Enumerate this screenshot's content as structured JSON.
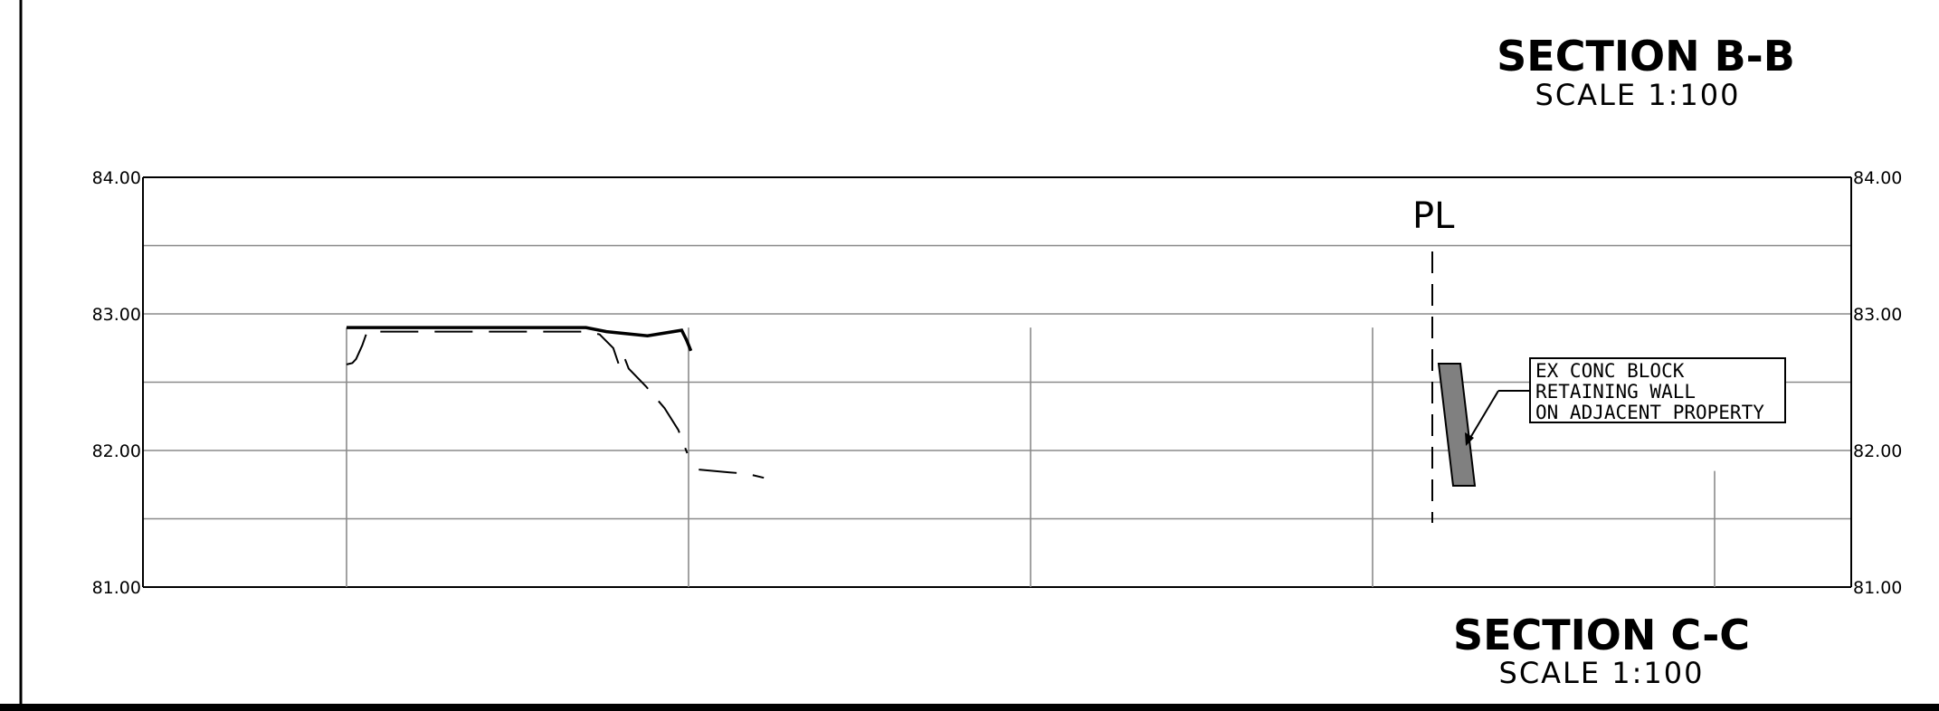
{
  "section_b": {
    "title": "SECTION B-B",
    "scale": "SCALE 1:100"
  },
  "section_c": {
    "title": "SECTION C-C",
    "scale": "SCALE 1:100"
  },
  "property_line": {
    "symbol": "PL"
  },
  "callout": {
    "lines": [
      "EX CONC BLOCK",
      "RETAINING WALL",
      "ON ADJACENT PROPERTY"
    ]
  },
  "chart_data": {
    "type": "line",
    "title": "SECTION C-C",
    "subtitle": "SCALE 1:100",
    "ylim": [
      81.0,
      84.0
    ],
    "y_ticks": [
      "84.00",
      "83.00",
      "82.00",
      "81.00"
    ],
    "grid": true,
    "series": [
      {
        "style": "solid",
        "points": [
          [
            0,
            82.9
          ],
          [
            70,
            82.9
          ],
          [
            76,
            82.87
          ],
          [
            88,
            82.84
          ],
          [
            98,
            82.88
          ],
          [
            99.4,
            82.81
          ],
          [
            100.7,
            82.73
          ]
        ]
      },
      {
        "style": "dashed",
        "points": [
          [
            0,
            82.63
          ],
          [
            1.7,
            82.64
          ],
          [
            2.8,
            82.67
          ],
          [
            4.6,
            82.77
          ],
          [
            6,
            82.87
          ],
          [
            70,
            82.87
          ],
          [
            74,
            82.85
          ],
          [
            78,
            82.75
          ],
          [
            80,
            82.6
          ],
          [
            81.4,
            82.67
          ],
          [
            82.5,
            82.6
          ],
          [
            87.5,
            82.47
          ],
          [
            93,
            82.31
          ],
          [
            97,
            82.15
          ],
          [
            99.6,
            81.98
          ]
        ]
      },
      {
        "style": "dashed",
        "points": [
          [
            103,
            81.86
          ],
          [
            112,
            81.84
          ],
          [
            117,
            81.83
          ],
          [
            122,
            81.8
          ]
        ]
      }
    ]
  },
  "colors": {
    "ink": "#000000",
    "grid": "#8a8a8a",
    "wall": "#808080"
  }
}
